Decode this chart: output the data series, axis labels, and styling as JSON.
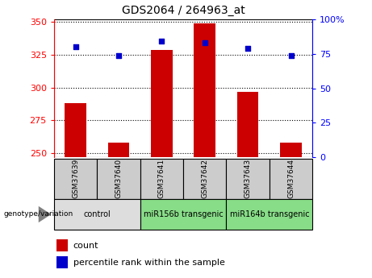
{
  "title": "GDS2064 / 264963_at",
  "samples": [
    "GSM37639",
    "GSM37640",
    "GSM37641",
    "GSM37642",
    "GSM37643",
    "GSM37644"
  ],
  "counts": [
    288,
    258,
    329,
    349,
    297,
    258
  ],
  "percentile_ranks": [
    80,
    74,
    84,
    83,
    79,
    74
  ],
  "ylim_left": [
    247,
    352
  ],
  "ylim_right": [
    0,
    100
  ],
  "yticks_left": [
    250,
    275,
    300,
    325,
    350
  ],
  "yticks_right": [
    0,
    25,
    50,
    75,
    100
  ],
  "groups": [
    {
      "label": "control",
      "span": [
        0,
        2
      ],
      "color": "#dddddd"
    },
    {
      "label": "miR156b transgenic",
      "span": [
        2,
        4
      ],
      "color": "#88dd88"
    },
    {
      "label": "miR164b transgenic",
      "span": [
        4,
        6
      ],
      "color": "#88dd88"
    }
  ],
  "bar_color": "#cc0000",
  "dot_color": "#0000cc",
  "bar_width": 0.5,
  "grid_color": "black",
  "bg_sample_box": "#cccccc",
  "title_fontsize": 10,
  "tick_fontsize": 8,
  "legend_fontsize": 8,
  "sample_label_fontsize": 6.5,
  "group_label_fontsize": 7
}
